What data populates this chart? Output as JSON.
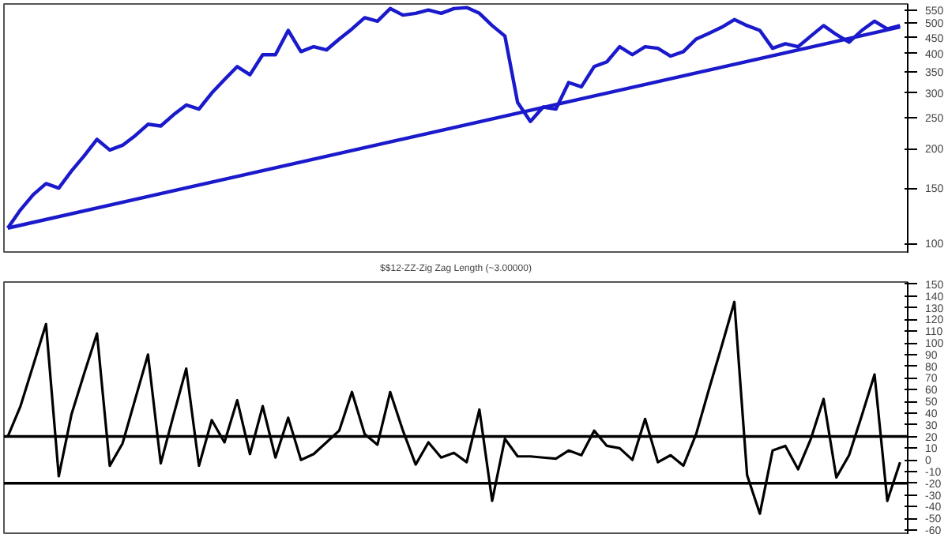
{
  "chart_data": [
    {
      "type": "line",
      "log": "y",
      "tick_labels": "y",
      "grid": false,
      "categories": [
        null,
        null,
        null,
        null,
        null,
        null,
        null,
        null,
        null,
        null,
        null,
        null,
        null,
        null,
        null,
        null,
        null,
        null,
        null,
        null,
        null,
        null,
        null,
        null,
        null,
        null,
        null,
        null,
        null,
        null,
        null,
        null,
        null,
        null,
        null,
        null,
        null,
        null,
        null,
        null,
        null,
        null,
        null,
        null,
        null,
        null,
        null,
        null,
        null,
        null,
        null,
        null,
        null,
        null,
        null,
        null,
        null,
        null,
        null,
        null,
        null,
        null,
        null,
        null,
        null,
        null,
        null,
        null,
        null,
        null,
        null
      ],
      "ylim": [
        93,
        575
      ],
      "yticks": [
        100,
        150,
        200,
        250,
        300,
        350,
        400,
        450,
        500,
        550
      ],
      "series": [
        {
          "color": "#1a1acc",
          "values": [
            112,
            128,
            143,
            155,
            150,
            170,
            190,
            214,
            198,
            205,
            220,
            239,
            236,
            256,
            275,
            267,
            300,
            331,
            364,
            343,
            397,
            397,
            474,
            406,
            421,
            411,
            445,
            479,
            520,
            507,
            556,
            530,
            537,
            550,
            537,
            556,
            560,
            537,
            491,
            455,
            280,
            244,
            271,
            267,
            324,
            314,
            364,
            377,
            421,
            397,
            421,
            416,
            393,
            406,
            445,
            464,
            485,
            513,
            491,
            474,
            416,
            430,
            421,
            455,
            491,
            460,
            435,
            474,
            507,
            479,
            491
          ]
        },
        {
          "type": "line",
          "color": "#1a1acc",
          "values": [
            112,
            null,
            null,
            null,
            null,
            null,
            null,
            null,
            null,
            null,
            null,
            null,
            null,
            null,
            null,
            null,
            null,
            null,
            null,
            null,
            null,
            null,
            null,
            null,
            null,
            null,
            null,
            null,
            null,
            null,
            null,
            null,
            null,
            null,
            null,
            null,
            null,
            null,
            null,
            null,
            null,
            null,
            null,
            null,
            null,
            null,
            null,
            null,
            null,
            null,
            null,
            null,
            null,
            null,
            null,
            null,
            null,
            null,
            null,
            null,
            null,
            null,
            null,
            null,
            null,
            null,
            null,
            null,
            null,
            null,
            486
          ]
        }
      ]
    },
    {
      "type": "line",
      "title": "$$12-ZZ-Zig Zag Length (~3.00000)",
      "tick_labels": "y",
      "grid": false,
      "categories": [
        null,
        null,
        null,
        null,
        null,
        null,
        null,
        null,
        null,
        null,
        null,
        null,
        null,
        null,
        null,
        null,
        null,
        null,
        null,
        null,
        null,
        null,
        null,
        null,
        null,
        null,
        null,
        null,
        null,
        null,
        null,
        null,
        null,
        null,
        null,
        null,
        null,
        null,
        null,
        null,
        null,
        null,
        null,
        null,
        null,
        null,
        null,
        null,
        null,
        null,
        null,
        null,
        null,
        null,
        null,
        null,
        null,
        null,
        null,
        null,
        null,
        null,
        null,
        null,
        null,
        null,
        null,
        null,
        null,
        null,
        null
      ],
      "ylim": [
        -64,
        152
      ],
      "yticks": [
        -60,
        -50,
        -40,
        -30,
        -20,
        -10,
        0,
        10,
        20,
        30,
        40,
        50,
        60,
        70,
        80,
        90,
        100,
        110,
        120,
        130,
        140,
        150
      ],
      "ref_lines": [
        {
          "axis": "y",
          "value": 20,
          "color": "#000000"
        },
        {
          "axis": "y",
          "value": -20,
          "color": "#000000"
        }
      ],
      "series": [
        {
          "color": "#000000",
          "values": [
            20,
            46,
            81,
            116,
            -14,
            39,
            74,
            108,
            -5,
            14,
            52,
            90,
            -3,
            38,
            78,
            -5,
            34,
            15,
            51,
            5,
            46,
            2,
            36,
            0,
            5,
            15,
            25,
            58,
            22,
            13,
            58,
            25,
            -4,
            15,
            2,
            6,
            -2,
            43,
            -35,
            18,
            3,
            3,
            2,
            1,
            8,
            4,
            25,
            12,
            10,
            0,
            35,
            -2,
            4,
            -5,
            22,
            60,
            97,
            135,
            -13,
            -46,
            8,
            12,
            -8,
            18,
            52,
            -15,
            4,
            38,
            73,
            -35,
            -2
          ]
        }
      ]
    }
  ]
}
